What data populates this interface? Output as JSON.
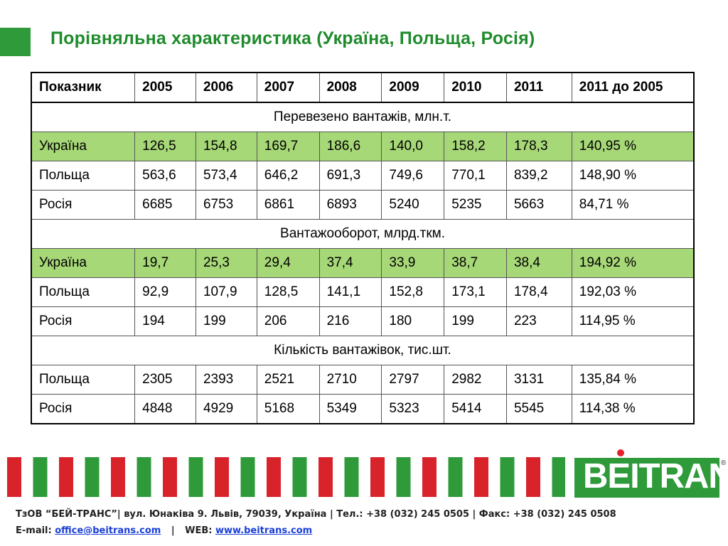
{
  "title": "Порівняльна характеристика (Україна, Польща, Росія)",
  "table": {
    "headers": [
      "Показник",
      "2005",
      "2006",
      "2007",
      "2008",
      "2009",
      "2010",
      "2011",
      "2011 до 2005"
    ],
    "sections": [
      {
        "label": "Перевезено вантажів, млн.т.",
        "rows": [
          {
            "cells": [
              "Україна",
              "126,5",
              "154,8",
              "169,7",
              "186,6",
              "140,0",
              "158,2",
              "178,3",
              "140,95 %"
            ],
            "highlight": true
          },
          {
            "cells": [
              "Польща",
              "563,6",
              "573,4",
              "646,2",
              "691,3",
              "749,6",
              "770,1",
              "839,2",
              "148,90 %"
            ],
            "highlight": false
          },
          {
            "cells": [
              "Росія",
              "6685",
              "6753",
              "6861",
              "6893",
              "5240",
              "5235",
              "5663",
              "84,71 %"
            ],
            "highlight": false
          }
        ]
      },
      {
        "label": "Вантажооборот, млрд.ткм.",
        "rows": [
          {
            "cells": [
              "Україна",
              "19,7",
              "25,3",
              "29,4",
              "37,4",
              "33,9",
              "38,7",
              "38,4",
              "194,92 %"
            ],
            "highlight": true
          },
          {
            "cells": [
              "Польща",
              "92,9",
              "107,9",
              "128,5",
              "141,1",
              "152,8",
              "173,1",
              "178,4",
              "192,03 %"
            ],
            "highlight": false
          },
          {
            "cells": [
              "Росія",
              "194",
              "199",
              "206",
              "216",
              "180",
              "199",
              "223",
              "114,95 %"
            ],
            "highlight": false
          }
        ]
      },
      {
        "label": "Кількість вантажівок, тис.шт.",
        "rows": [
          {
            "cells": [
              "Польща",
              "2305",
              "2393",
              "2521",
              "2710",
              "2797",
              "2982",
              "3131",
              "135,84 %"
            ],
            "highlight": false
          },
          {
            "cells": [
              "Росія",
              "4848",
              "4929",
              "5168",
              "5349",
              "5323",
              "5414",
              "5545",
              "114,38 %"
            ],
            "highlight": false
          }
        ]
      }
    ]
  },
  "logo": {
    "text": "BEITRANS",
    "reg_mark": "®"
  },
  "footer": {
    "line1": "ТзОВ “БЕЙ-ТРАНС”| вул. Юнаківа 9. Львів, 79039, Україна | Тел.: +38 (032) 245 0505 | Факс: +38 (032) 245 0508",
    "email_label": "E-mail:",
    "email": "office@beitrans.com",
    "separator": "|",
    "web_label": "WEB:",
    "web": "www.beitrans.com"
  },
  "colors": {
    "title_green": "#1f8b2c",
    "highlight_green": "#a7d878",
    "stripe_red": "#d9232b",
    "stripe_green": "#2e9a3a",
    "logo_green": "#2e9a3a"
  }
}
